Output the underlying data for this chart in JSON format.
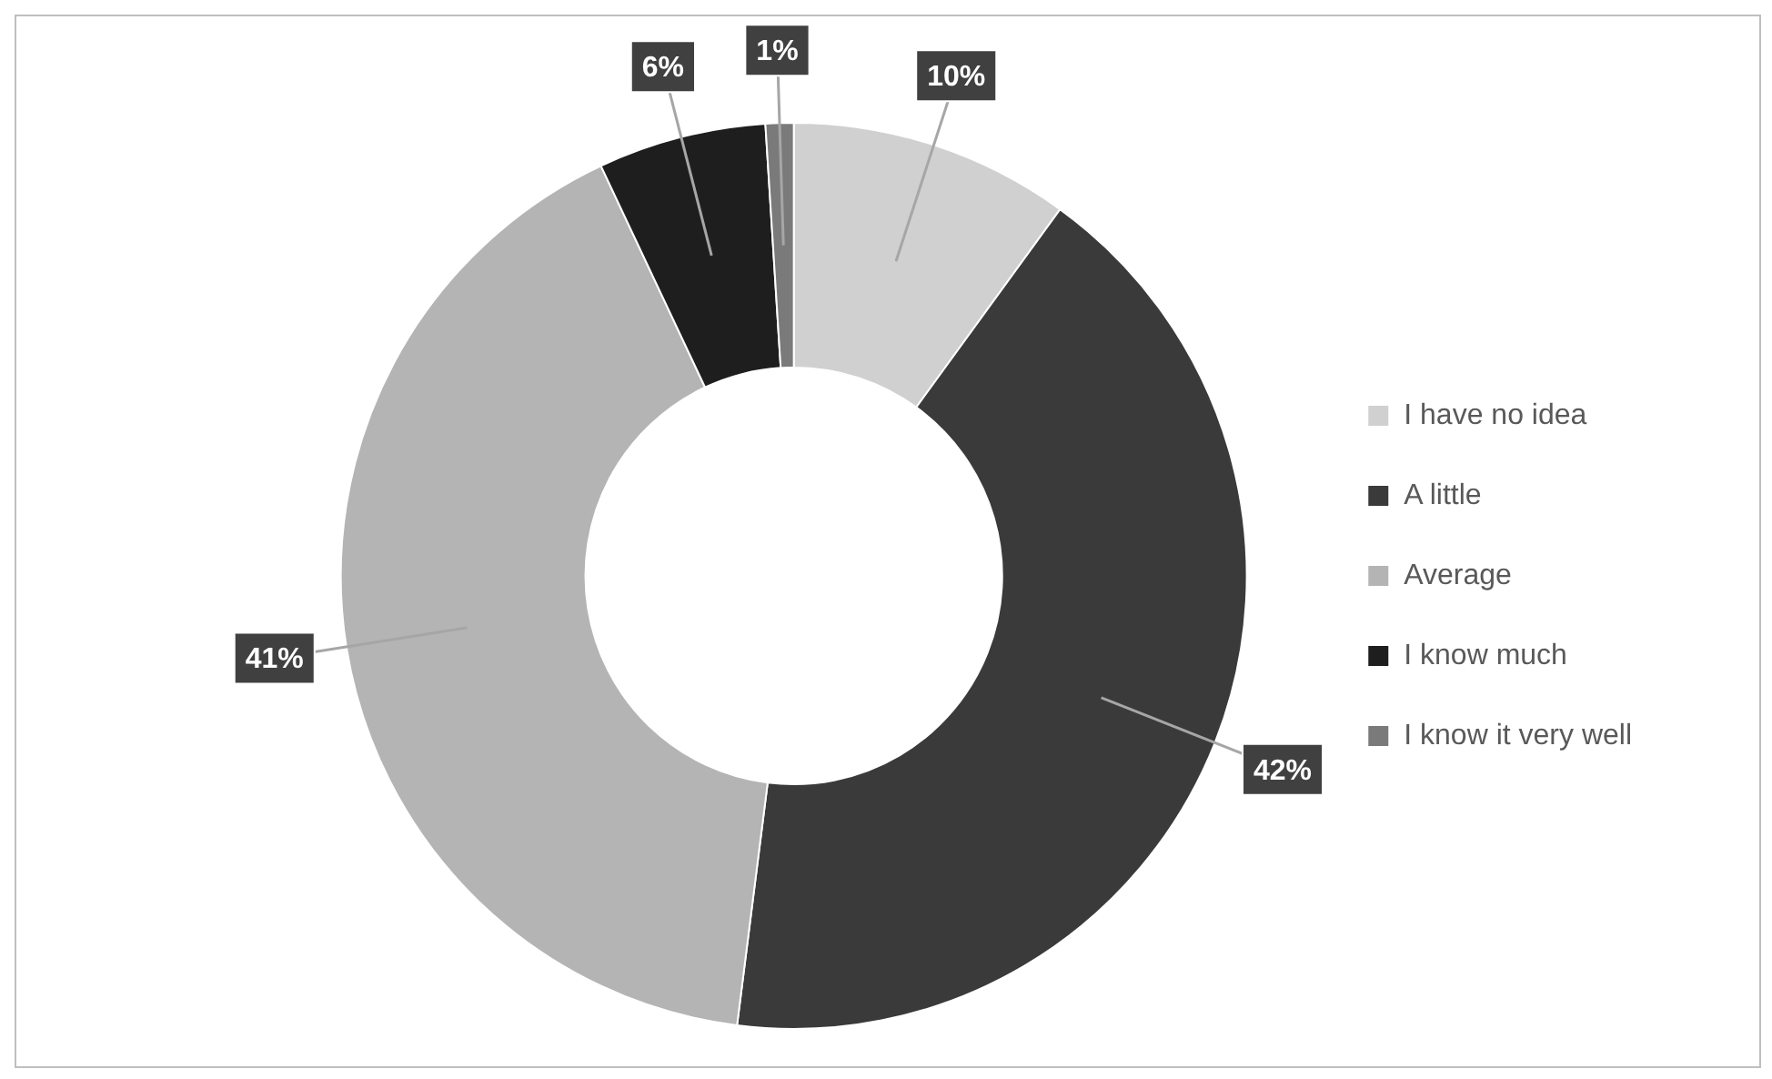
{
  "chart_data": {
    "type": "donut",
    "categories": [
      "I have no idea",
      "A little",
      "Average",
      "I know much",
      "I know it very well"
    ],
    "values": [
      10,
      42,
      41,
      6,
      1
    ],
    "colors": [
      "#d0d0d0",
      "#3a3a3a",
      "#b4b4b4",
      "#1e1e1e",
      "#7a7a7a"
    ],
    "value_labels": [
      "10%",
      "42%",
      "41%",
      "6%",
      "1%"
    ],
    "legend": "right"
  }
}
